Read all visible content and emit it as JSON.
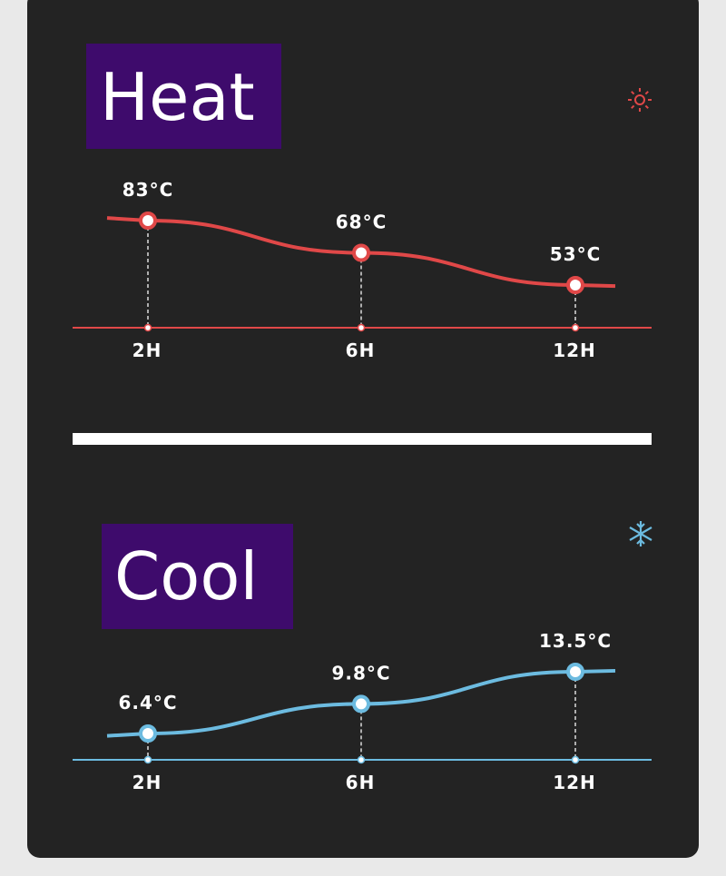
{
  "chart_data": [
    {
      "type": "line",
      "title": "Heat",
      "categories": [
        "2H",
        "6H",
        "12H"
      ],
      "values": [
        83,
        68,
        53
      ],
      "value_labels": [
        "83°C",
        "68°C",
        "53°C"
      ],
      "color": "#e04848"
    },
    {
      "type": "line",
      "title": "Cool",
      "categories": [
        "2H",
        "6H",
        "12H"
      ],
      "values": [
        6.4,
        9.8,
        13.5
      ],
      "value_labels": [
        "6.4°C",
        "9.8°C",
        "13.5°C"
      ],
      "color": "#6cbbe0"
    }
  ]
}
